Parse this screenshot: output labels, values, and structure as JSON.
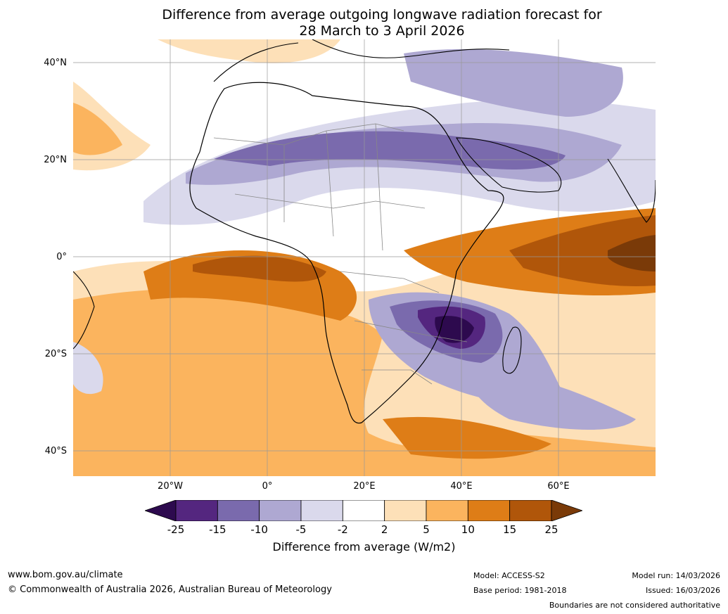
{
  "title": {
    "line1": "Difference from average outgoing longwave radiation forecast for",
    "line2": "28 March to 3 April 2026"
  },
  "map": {
    "lat_labels": [
      "40°N",
      "20°N",
      "0°",
      "20°S",
      "40°S"
    ],
    "lon_labels": [
      "20°W",
      "0°",
      "20°E",
      "40°E",
      "60°E"
    ]
  },
  "colorbar": {
    "ticks": [
      "-25",
      "-15",
      "-10",
      "-5",
      "-2",
      "2",
      "5",
      "10",
      "15",
      "25"
    ],
    "colors": [
      "#2d0a4e",
      "#54267f",
      "#7a6aad",
      "#aea8d2",
      "#dad9ec",
      "#ffffff",
      "#fde0b8",
      "#fbb45e",
      "#de7d17",
      "#b0560a",
      "#7a3a08"
    ],
    "label": "Difference from average (W/m2)"
  },
  "footer": {
    "website": "www.bom.gov.au/climate",
    "copyright": "© Commonwealth of Australia 2026, Australian Bureau of Meteorology",
    "model": "Model: ACCESS-S2",
    "base_period": "Base period: 1981-2018",
    "model_run": "Model run: 14/03/2026",
    "issued": "Issued: 16/03/2026",
    "disclaimer": "Boundaries are not considered authoritative"
  }
}
